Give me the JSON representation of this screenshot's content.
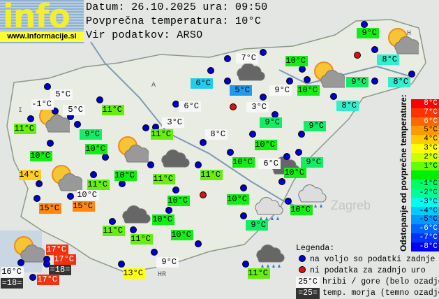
{
  "header": {
    "logo_text": "info",
    "logo_url": "www.informacije.si",
    "date_line": "Datum: 26.10.2025 ura: 09:50",
    "avg_line": "Povprečna temperatura: 10°C",
    "source_line": "Vir podatkov: ARSO"
  },
  "stations": [
    "9°C",
    "8°C",
    "8°C",
    "9°C",
    "8°C",
    "10°C",
    "10°C",
    "9°C",
    "7°C",
    "5°C",
    "6°C",
    "3°C",
    "9°C",
    "9°C",
    "10°C",
    "10°C",
    "6°C",
    "9°C",
    "10°C",
    "10°C",
    "5°C",
    "-1°C",
    "5°C",
    "11°C",
    "9°C",
    "11°C",
    "10°C",
    "10°C",
    "6°C",
    "3°C",
    "11°C",
    "8°C",
    "11°C",
    "14°C",
    "11°C",
    "10°C",
    "11°C",
    "10°C",
    "15°C",
    "15°C",
    "10°C",
    "10°C",
    "10°C",
    "11°C",
    "11°C",
    "9°C",
    "13°C",
    "10°C",
    "9°C",
    "11°C",
    "17°C",
    "17°C",
    "=18=",
    "16°C",
    "=18=",
    "17°C",
    "11°C"
  ],
  "scale": {
    "title": "Odstopanje od povprečne temperature:",
    "steps": [
      {
        "label": "8°C",
        "color": "#ff0000"
      },
      {
        "label": "7°C",
        "color": "#ff3300"
      },
      {
        "label": "6°C",
        "color": "#ff6600"
      },
      {
        "label": "5°C",
        "color": "#ff9900"
      },
      {
        "label": "4°C",
        "color": "#ffcc00"
      },
      {
        "label": "3°C",
        "color": "#ffff00"
      },
      {
        "label": "2°C",
        "color": "#ccff00"
      },
      {
        "label": "1°C",
        "color": "#66ff00"
      },
      {
        "label": "",
        "color": "#00ee00"
      },
      {
        "label": "-1°C",
        "color": "#00ff66"
      },
      {
        "label": "-2°C",
        "color": "#00ff99"
      },
      {
        "label": "-3°C",
        "color": "#00ffee"
      },
      {
        "label": "-4°C",
        "color": "#00ccff"
      },
      {
        "label": "-5°C",
        "color": "#0099ff"
      },
      {
        "label": "-6°C",
        "color": "#0066ff"
      },
      {
        "label": "-7°C",
        "color": "#0033ff"
      },
      {
        "label": "-8°C",
        "color": "#0000ff"
      }
    ]
  },
  "legend": {
    "title": "Legenda:",
    "blue_dot": "na voljo so podatki zadnje ure",
    "red_dot": "ni podatka za zadnjo uro",
    "white_sample": "25°C",
    "white_text": "hribi / gore (belo ozadje)",
    "dark_sample": "=25=",
    "dark_text": "temp. morja (temno ozadje)"
  },
  "map_labels": {
    "austria": "A",
    "hungary": "H",
    "italy": "I",
    "croatia": "HR",
    "zagreb": "Zagreb"
  }
}
